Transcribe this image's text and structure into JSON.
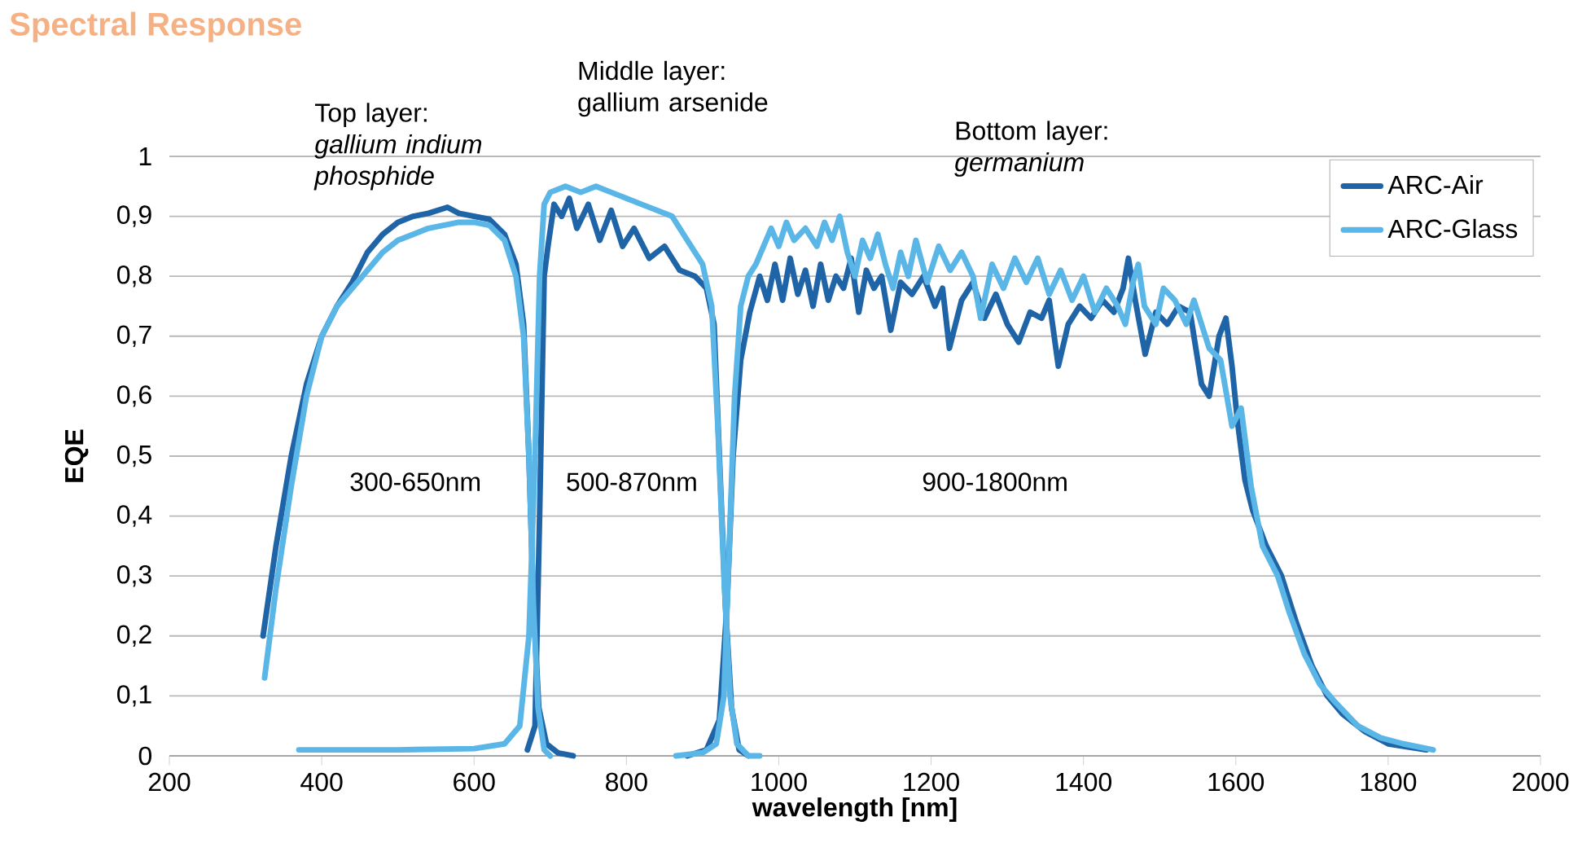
{
  "chart_data": {
    "type": "line",
    "title": "Spectral Response",
    "xlabel": "wavelength [nm]",
    "ylabel": "EQE",
    "xlim": [
      200,
      2000
    ],
    "ylim": [
      0,
      1
    ],
    "xticks": [
      200,
      400,
      600,
      800,
      1000,
      1200,
      1400,
      1600,
      1800,
      2000
    ],
    "yticks": [
      0,
      {
        "value": 0.1,
        "label": "0,1"
      },
      {
        "value": 0.2,
        "label": "0,2"
      },
      {
        "value": 0.3,
        "label": "0,3"
      },
      {
        "value": 0.4,
        "label": "0,4"
      },
      {
        "value": 0.5,
        "label": "0,5"
      },
      {
        "value": 0.6,
        "label": "0,6"
      },
      {
        "value": 0.7,
        "label": "0,7"
      },
      {
        "value": 0.8,
        "label": "0,8"
      },
      {
        "value": 0.9,
        "label": "0,9"
      },
      1
    ],
    "grid": "y",
    "legend": "top right",
    "marker": "none",
    "line_style": "solid",
    "annotations": [
      "Top layer: *gallium indium phosphide*",
      "Middle layer: gallium arsenide",
      "Bottom layer: *germanium*",
      "300-650nm",
      "500-870nm",
      "900-1800nm"
    ],
    "series": [
      {
        "name": "ARC-Air",
        "color": "#1f64a6",
        "x": [
          323,
          340,
          360,
          380,
          400,
          420,
          440,
          460,
          480,
          500,
          520,
          540,
          565,
          580,
          600,
          620,
          640,
          655,
          665,
          672,
          678,
          685,
          695,
          710,
          730
        ],
        "values": [
          0.2,
          0.35,
          0.5,
          0.62,
          0.7,
          0.75,
          0.79,
          0.84,
          0.87,
          0.89,
          0.9,
          0.905,
          0.915,
          0.905,
          0.9,
          0.895,
          0.87,
          0.82,
          0.72,
          0.5,
          0.25,
          0.08,
          0.02,
          0.005,
          0.0
        ]
      },
      {
        "color": "#1f64a6",
        "x": [
          670,
          680,
          686,
          692,
          697,
          705,
          715,
          725,
          735,
          750,
          765,
          780,
          795,
          810,
          830,
          850,
          870,
          890,
          905,
          915,
          922,
          930,
          938,
          948,
          960
        ],
        "values": [
          0.01,
          0.05,
          0.4,
          0.8,
          0.85,
          0.92,
          0.9,
          0.93,
          0.88,
          0.92,
          0.86,
          0.91,
          0.85,
          0.88,
          0.83,
          0.85,
          0.81,
          0.8,
          0.78,
          0.72,
          0.5,
          0.25,
          0.08,
          0.01,
          0.0
        ]
      },
      {
        "color": "#1f64a6",
        "x": [
          880,
          905,
          922,
          932,
          940,
          950,
          962,
          975,
          985,
          995,
          1005,
          1015,
          1025,
          1035,
          1045,
          1055,
          1065,
          1075,
          1085,
          1095,
          1105,
          1115,
          1125,
          1135,
          1147,
          1160,
          1175,
          1190,
          1205,
          1215,
          1224,
          1240,
          1255,
          1270,
          1285,
          1300,
          1315,
          1330,
          1345,
          1355,
          1367,
          1380,
          1395,
          1410,
          1425,
          1440,
          1452,
          1459,
          1468,
          1481,
          1495,
          1510,
          1525,
          1540,
          1555,
          1565,
          1578,
          1587,
          1595,
          1602,
          1612,
          1622,
          1640,
          1660,
          1680,
          1700,
          1720,
          1740,
          1770,
          1800,
          1850
        ],
        "values": [
          0.0,
          0.01,
          0.06,
          0.25,
          0.5,
          0.66,
          0.74,
          0.8,
          0.76,
          0.82,
          0.76,
          0.83,
          0.77,
          0.81,
          0.75,
          0.82,
          0.76,
          0.8,
          0.78,
          0.83,
          0.74,
          0.81,
          0.78,
          0.8,
          0.71,
          0.79,
          0.77,
          0.8,
          0.75,
          0.78,
          0.68,
          0.76,
          0.79,
          0.73,
          0.77,
          0.72,
          0.69,
          0.74,
          0.73,
          0.76,
          0.65,
          0.72,
          0.75,
          0.73,
          0.76,
          0.74,
          0.78,
          0.83,
          0.76,
          0.67,
          0.74,
          0.72,
          0.75,
          0.74,
          0.62,
          0.6,
          0.7,
          0.73,
          0.65,
          0.56,
          0.46,
          0.41,
          0.35,
          0.3,
          0.22,
          0.15,
          0.1,
          0.07,
          0.04,
          0.02,
          0.01
        ]
      },
      {
        "name": "ARC-Glass",
        "color": "#5ab6e6",
        "x": [
          325,
          340,
          360,
          380,
          400,
          420,
          440,
          460,
          480,
          500,
          520,
          540,
          560,
          580,
          600,
          620,
          640,
          655,
          665,
          672,
          678,
          684,
          692,
          700
        ],
        "values": [
          0.13,
          0.28,
          0.45,
          0.6,
          0.7,
          0.75,
          0.78,
          0.81,
          0.84,
          0.86,
          0.87,
          0.88,
          0.885,
          0.89,
          0.89,
          0.885,
          0.86,
          0.8,
          0.7,
          0.5,
          0.25,
          0.08,
          0.01,
          0.0
        ]
      },
      {
        "color": "#5ab6e6",
        "x": [
          370,
          500,
          600,
          640,
          660,
          672,
          680,
          686,
          692,
          700,
          720,
          740,
          760,
          780,
          800,
          820,
          840,
          860,
          880,
          900,
          912,
          920,
          928,
          936,
          945,
          960,
          975
        ],
        "values": [
          0.01,
          0.01,
          0.012,
          0.02,
          0.05,
          0.2,
          0.5,
          0.8,
          0.92,
          0.94,
          0.95,
          0.94,
          0.95,
          0.94,
          0.93,
          0.92,
          0.91,
          0.9,
          0.86,
          0.82,
          0.75,
          0.55,
          0.3,
          0.1,
          0.02,
          0.0,
          0.0
        ]
      },
      {
        "color": "#5ab6e6",
        "x": [
          865,
          900,
          918,
          928,
          935,
          942,
          950,
          960,
          970,
          980,
          990,
          1000,
          1010,
          1020,
          1035,
          1050,
          1060,
          1070,
          1080,
          1090,
          1100,
          1110,
          1120,
          1130,
          1140,
          1150,
          1160,
          1170,
          1180,
          1195,
          1210,
          1225,
          1240,
          1255,
          1265,
          1280,
          1295,
          1310,
          1325,
          1340,
          1355,
          1370,
          1385,
          1400,
          1415,
          1430,
          1445,
          1455,
          1465,
          1472,
          1480,
          1495,
          1505,
          1520,
          1535,
          1545,
          1555,
          1565,
          1580,
          1595,
          1607,
          1620,
          1635,
          1655,
          1670,
          1690,
          1710,
          1730,
          1760,
          1790,
          1820,
          1859
        ],
        "values": [
          0.0,
          0.005,
          0.02,
          0.1,
          0.35,
          0.6,
          0.75,
          0.8,
          0.82,
          0.85,
          0.88,
          0.85,
          0.89,
          0.86,
          0.88,
          0.85,
          0.89,
          0.86,
          0.9,
          0.84,
          0.8,
          0.86,
          0.83,
          0.87,
          0.82,
          0.78,
          0.84,
          0.8,
          0.86,
          0.79,
          0.85,
          0.81,
          0.84,
          0.8,
          0.73,
          0.82,
          0.78,
          0.83,
          0.79,
          0.83,
          0.77,
          0.81,
          0.76,
          0.8,
          0.74,
          0.78,
          0.75,
          0.72,
          0.79,
          0.82,
          0.75,
          0.72,
          0.78,
          0.76,
          0.72,
          0.76,
          0.72,
          0.68,
          0.66,
          0.55,
          0.58,
          0.45,
          0.35,
          0.3,
          0.24,
          0.17,
          0.12,
          0.09,
          0.05,
          0.03,
          0.02,
          0.01
        ]
      }
    ]
  }
}
